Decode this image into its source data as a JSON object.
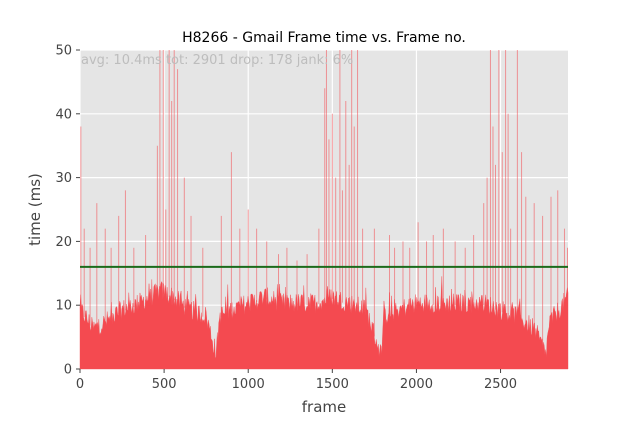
{
  "chart_data": {
    "type": "area",
    "title": "H8266 - Gmail Frame time vs. Frame no.",
    "xlabel": "frame",
    "ylabel": "time (ms)",
    "xlim": [
      0,
      2901
    ],
    "ylim": [
      0,
      50
    ],
    "xticks": [
      0,
      500,
      1000,
      1500,
      2000,
      2500
    ],
    "yticks": [
      0,
      10,
      20,
      30,
      40,
      50
    ],
    "grid": true,
    "stats_text": "avg: 10.4ms tot: 2901 drop: 178 jank: 6%",
    "threshold": 16,
    "series": [
      {
        "type": "area",
        "color": "#f44a50"
      },
      {
        "type": "hline",
        "value": 16,
        "color": "#1b6b1b"
      }
    ],
    "profile": [
      [
        0,
        9
      ],
      [
        30,
        8
      ],
      [
        80,
        6
      ],
      [
        150,
        7
      ],
      [
        250,
        9
      ],
      [
        350,
        10
      ],
      [
        420,
        11
      ],
      [
        480,
        12
      ],
      [
        550,
        11
      ],
      [
        650,
        9
      ],
      [
        750,
        8
      ],
      [
        810,
        2
      ],
      [
        830,
        8
      ],
      [
        900,
        9
      ],
      [
        1000,
        10
      ],
      [
        1100,
        11
      ],
      [
        1200,
        10
      ],
      [
        1300,
        10
      ],
      [
        1400,
        10
      ],
      [
        1500,
        11
      ],
      [
        1600,
        10
      ],
      [
        1700,
        9
      ],
      [
        1790,
        2
      ],
      [
        1810,
        8
      ],
      [
        1900,
        9
      ],
      [
        2000,
        10
      ],
      [
        2100,
        10
      ],
      [
        2200,
        10
      ],
      [
        2300,
        10
      ],
      [
        2400,
        10
      ],
      [
        2500,
        9
      ],
      [
        2600,
        8
      ],
      [
        2700,
        6
      ],
      [
        2770,
        2
      ],
      [
        2790,
        7
      ],
      [
        2850,
        9
      ],
      [
        2901,
        11
      ]
    ],
    "spikes": [
      [
        5,
        38
      ],
      [
        25,
        22
      ],
      [
        60,
        19
      ],
      [
        100,
        26
      ],
      [
        150,
        22
      ],
      [
        185,
        19
      ],
      [
        230,
        24
      ],
      [
        270,
        28
      ],
      [
        320,
        19
      ],
      [
        390,
        21
      ],
      [
        460,
        35
      ],
      [
        475,
        50
      ],
      [
        495,
        50
      ],
      [
        510,
        25
      ],
      [
        530,
        50
      ],
      [
        545,
        42
      ],
      [
        560,
        50
      ],
      [
        580,
        47
      ],
      [
        620,
        30
      ],
      [
        660,
        24
      ],
      [
        730,
        19
      ],
      [
        840,
        24
      ],
      [
        900,
        34
      ],
      [
        950,
        22
      ],
      [
        1000,
        25
      ],
      [
        1050,
        22
      ],
      [
        1110,
        20
      ],
      [
        1180,
        18
      ],
      [
        1230,
        19
      ],
      [
        1290,
        17
      ],
      [
        1350,
        18
      ],
      [
        1420,
        22
      ],
      [
        1455,
        44
      ],
      [
        1465,
        50
      ],
      [
        1480,
        36
      ],
      [
        1500,
        40
      ],
      [
        1520,
        30
      ],
      [
        1545,
        50
      ],
      [
        1560,
        28
      ],
      [
        1580,
        42
      ],
      [
        1600,
        32
      ],
      [
        1615,
        50
      ],
      [
        1630,
        38
      ],
      [
        1650,
        50
      ],
      [
        1680,
        22
      ],
      [
        1750,
        22
      ],
      [
        1840,
        21
      ],
      [
        1870,
        19
      ],
      [
        1920,
        20
      ],
      [
        1960,
        19
      ],
      [
        2010,
        23
      ],
      [
        2060,
        20
      ],
      [
        2100,
        21
      ],
      [
        2160,
        22
      ],
      [
        2230,
        20
      ],
      [
        2290,
        19
      ],
      [
        2340,
        21
      ],
      [
        2400,
        26
      ],
      [
        2420,
        30
      ],
      [
        2440,
        50
      ],
      [
        2455,
        38
      ],
      [
        2470,
        32
      ],
      [
        2490,
        50
      ],
      [
        2510,
        34
      ],
      [
        2530,
        50
      ],
      [
        2545,
        40
      ],
      [
        2560,
        22
      ],
      [
        2600,
        50
      ],
      [
        2625,
        34
      ],
      [
        2650,
        27
      ],
      [
        2700,
        26
      ],
      [
        2750,
        24
      ],
      [
        2800,
        27
      ],
      [
        2840,
        28
      ],
      [
        2880,
        22
      ],
      [
        2898,
        19
      ]
    ]
  }
}
